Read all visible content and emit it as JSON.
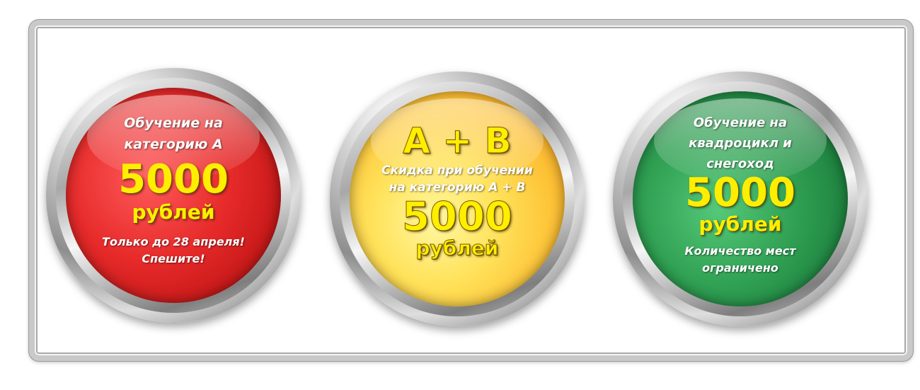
{
  "badges": [
    {
      "color": "#e02626",
      "lines_top": [
        "Обучение на",
        "категорию А"
      ],
      "price": "5000",
      "currency": "рублей",
      "lines_bottom": [
        "Только до 28 апреля!",
        "Спешите!"
      ]
    },
    {
      "color": "#fdd23a",
      "heading": "A + B",
      "lines_top": [
        "Скидка при обучении",
        "на категорию А + В"
      ],
      "price": "5000",
      "currency": "рублей"
    },
    {
      "color": "#2a9a4c",
      "lines_top": [
        "Обучение на",
        "квадроцикл и",
        "снегоход"
      ],
      "price": "5000",
      "currency": "рублей",
      "lines_bottom": [
        "Количество мест",
        "ограничено"
      ]
    }
  ]
}
